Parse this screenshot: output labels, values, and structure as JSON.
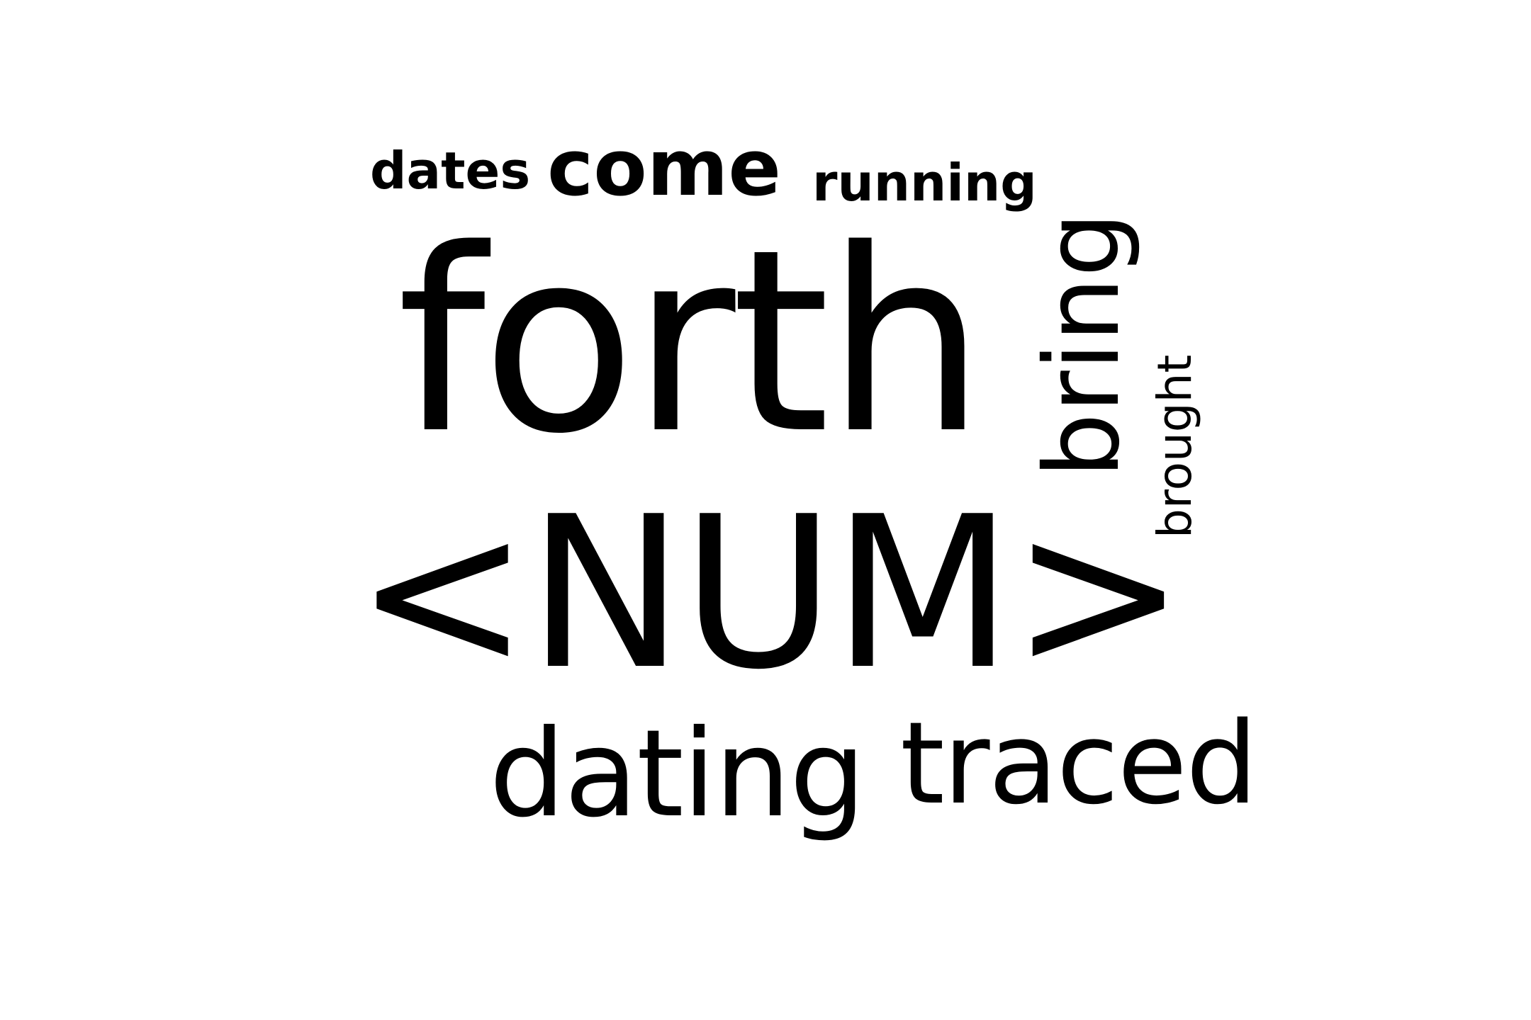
{
  "word_cloud": {
    "words": [
      {
        "text": "dates",
        "orientation": "horizontal"
      },
      {
        "text": "come",
        "orientation": "horizontal"
      },
      {
        "text": "running",
        "orientation": "horizontal"
      },
      {
        "text": "forth",
        "orientation": "horizontal"
      },
      {
        "text": "bring",
        "orientation": "vertical"
      },
      {
        "text": "brought",
        "orientation": "vertical"
      },
      {
        "text": "<NUM>",
        "orientation": "horizontal"
      },
      {
        "text": "dating",
        "orientation": "horizontal"
      },
      {
        "text": "traced",
        "orientation": "horizontal"
      }
    ],
    "text_color": "#000000",
    "background_color": "#ffffff"
  }
}
